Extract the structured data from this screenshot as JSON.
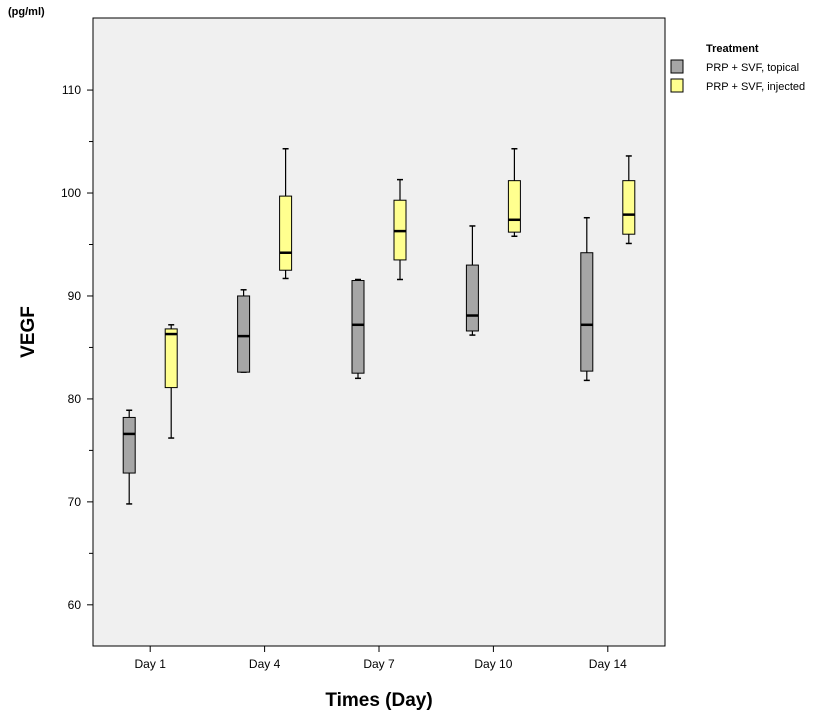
{
  "chart_data": {
    "type": "boxplot",
    "title": "",
    "unit_label": "(pg/ml)",
    "xlabel": "Times (Day)",
    "ylabel": "VEGF",
    "ylim": [
      56,
      117
    ],
    "yticks": [
      60,
      70,
      80,
      90,
      100,
      110
    ],
    "categories": [
      "Day 1",
      "Day 4",
      "Day 7",
      "Day 10",
      "Day 14"
    ],
    "legend": {
      "title": "Treatment",
      "position": "top-right"
    },
    "grid": false,
    "series": [
      {
        "name": "PRP + SVF, topical",
        "color": "#a6a6a6",
        "boxes": [
          {
            "min": 69.8,
            "q1": 72.8,
            "median": 76.6,
            "q3": 78.2,
            "max": 78.9
          },
          {
            "min": 82.6,
            "q1": 82.6,
            "median": 86.1,
            "q3": 90.0,
            "max": 90.6
          },
          {
            "min": 82.0,
            "q1": 82.5,
            "median": 87.2,
            "q3": 91.5,
            "max": 91.6
          },
          {
            "min": 86.2,
            "q1": 86.6,
            "median": 88.1,
            "q3": 93.0,
            "max": 96.8
          },
          {
            "min": 81.8,
            "q1": 82.7,
            "median": 87.2,
            "q3": 94.2,
            "max": 97.6
          }
        ]
      },
      {
        "name": "PRP + SVF, injected",
        "color": "#ffff8f",
        "boxes": [
          {
            "min": 76.2,
            "q1": 81.1,
            "median": 86.3,
            "q3": 86.8,
            "max": 87.2
          },
          {
            "min": 91.7,
            "q1": 92.5,
            "median": 94.2,
            "q3": 99.7,
            "max": 104.3
          },
          {
            "min": 91.6,
            "q1": 93.5,
            "median": 96.3,
            "q3": 99.3,
            "max": 101.3
          },
          {
            "min": 95.8,
            "q1": 96.2,
            "median": 97.4,
            "q3": 101.2,
            "max": 104.3
          },
          {
            "min": 95.1,
            "q1": 96.0,
            "median": 97.9,
            "q3": 101.2,
            "max": 103.6
          }
        ]
      }
    ]
  }
}
